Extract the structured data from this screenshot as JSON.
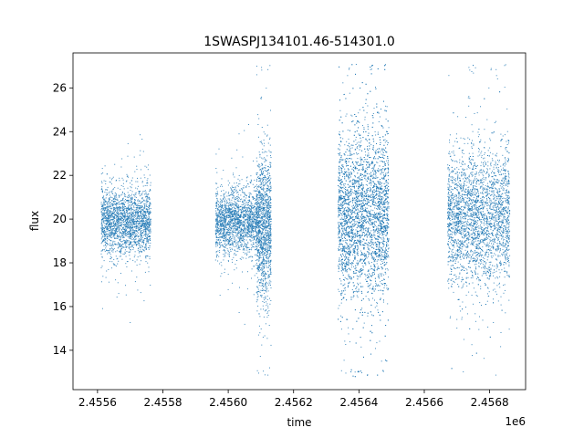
{
  "chart_data": {
    "type": "scatter",
    "title": "1SWASPJ134101.46-514301.0",
    "xlabel": "time",
    "ylabel": "flux",
    "x_offset_label": "1e6",
    "xlim": [
      2455525,
      2456910
    ],
    "ylim": [
      12.2,
      27.6
    ],
    "x_ticks": [
      2455600,
      2455800,
      2456000,
      2456200,
      2456400,
      2456600,
      2456800
    ],
    "x_tick_labels": [
      "2.4556",
      "2.4558",
      "2.4560",
      "2.4562",
      "2.4564",
      "2.4566",
      "2.4568"
    ],
    "y_ticks": [
      14,
      16,
      18,
      20,
      22,
      24,
      26
    ],
    "y_tick_labels": [
      "14",
      "16",
      "18",
      "20",
      "22",
      "24",
      "26"
    ],
    "grid": false,
    "point_color": "#1f77b4",
    "clusters": [
      {
        "x_range": [
          2455610,
          2455762
        ],
        "center": 19.9,
        "spread": 0.75,
        "points": 2200
      },
      {
        "x_range": [
          2455960,
          2456085
        ],
        "center": 19.9,
        "spread": 0.7,
        "points": 1800
      },
      {
        "x_range": [
          2456085,
          2456130
        ],
        "center": 19.7,
        "spread": 1.6,
        "points": 1400
      },
      {
        "x_range": [
          2456335,
          2456490
        ],
        "center": 20.2,
        "spread": 1.9,
        "points": 4200
      },
      {
        "x_range": [
          2456670,
          2456860
        ],
        "center": 20.1,
        "spread": 1.5,
        "points": 3200
      }
    ]
  }
}
